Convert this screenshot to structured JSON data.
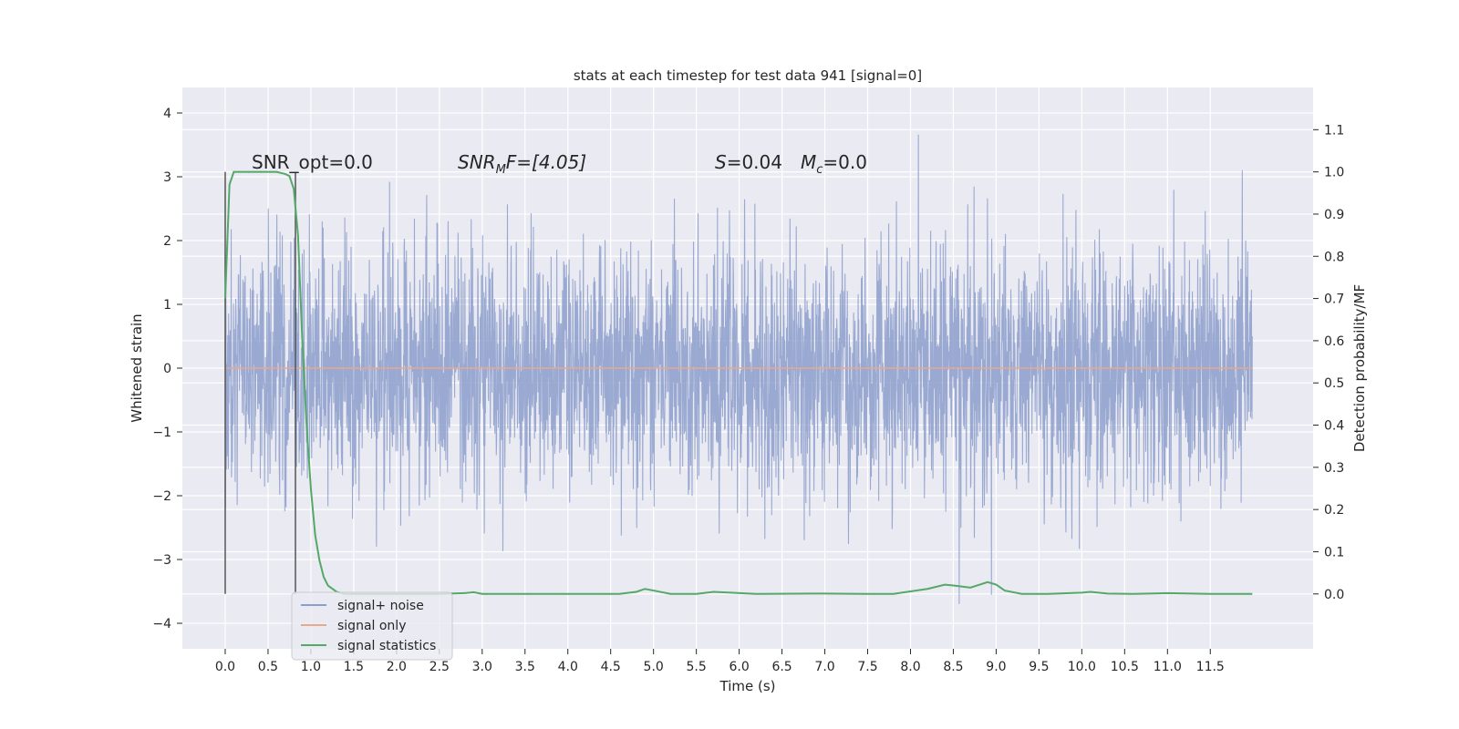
{
  "chart_data": {
    "type": "line",
    "title": "stats at each timestep for test data 941 [signal=0]",
    "xlabel": "Time (s)",
    "ylabel": "Whitened strain",
    "y2label": "Detection probability/MF",
    "xlim": [
      -0.5,
      12.7
    ],
    "ylim": [
      -4.4,
      4.4
    ],
    "y2lim": [
      -0.13,
      1.2
    ],
    "x_ticks": [
      0.0,
      0.5,
      1.0,
      1.5,
      2.0,
      2.5,
      3.0,
      3.5,
      4.0,
      4.5,
      5.0,
      5.5,
      6.0,
      6.5,
      7.0,
      7.5,
      8.0,
      8.5,
      9.0,
      9.5,
      10.0,
      10.5,
      11.0,
      11.5
    ],
    "x_tick_labels": [
      "0.0",
      "0.5",
      "1.0",
      "1.5",
      "2.0",
      "2.5",
      "3.0",
      "3.5",
      "4.0",
      "4.5",
      "5.0",
      "5.5",
      "6.0",
      "6.5",
      "7.0",
      "7.5",
      "8.0",
      "8.5",
      "9.0",
      "9.5",
      "10.0",
      "10.5",
      "11.0",
      "11.5"
    ],
    "y_ticks": [
      4,
      3,
      2,
      1,
      0,
      -1,
      -2,
      -3,
      -4
    ],
    "y_tick_labels": [
      "4",
      "3",
      "2",
      "1",
      "0",
      "−1",
      "−2",
      "−3",
      "−4"
    ],
    "y2_ticks": [
      1.1,
      1.0,
      0.9,
      0.8,
      0.7,
      0.6,
      0.5,
      0.4,
      0.3,
      0.2,
      0.1,
      0.0
    ],
    "y2_tick_labels": [
      "1.1",
      "1.0",
      "0.9",
      "0.8",
      "0.7",
      "0.6",
      "0.5",
      "0.4",
      "0.3",
      "0.2",
      "0.1",
      "0.0"
    ],
    "grid": true,
    "legend_position": "lower-left",
    "annotations": {
      "snr_opt": "SNR_opt=0.0",
      "snr_mf_main": "SNR",
      "snr_mf_sub": "M",
      "snr_mf_rest": "F=[4.05]",
      "s_label": "S",
      "s_value": "=0.04",
      "mc_label": "M",
      "mc_sub": "c",
      "mc_value": "=0.0"
    },
    "marker_lines_x": [
      0.0,
      0.82
    ],
    "series": [
      {
        "name": "signal+ noise",
        "color": "#8c9ecb",
        "axis": "left",
        "x_range": [
          0.0,
          11.99
        ],
        "y_range": [
          -4.1,
          4.0
        ],
        "note_points": []
      },
      {
        "name": "signal only",
        "color": "#e8a88c",
        "axis": "left",
        "x": [
          0.0,
          11.99
        ],
        "y": [
          0.0,
          0.0
        ]
      },
      {
        "name": "signal statistics",
        "color": "#55a868",
        "axis": "right",
        "x": [
          0.0,
          0.05,
          0.1,
          0.15,
          0.2,
          0.3,
          0.4,
          0.5,
          0.6,
          0.7,
          0.75,
          0.8,
          0.85,
          0.9,
          0.95,
          1.0,
          1.05,
          1.1,
          1.15,
          1.2,
          1.3,
          1.4,
          1.6,
          2.0,
          2.5,
          2.8,
          2.9,
          3.0,
          3.2,
          4.0,
          4.6,
          4.8,
          4.9,
          5.0,
          5.2,
          5.5,
          5.7,
          5.9,
          6.2,
          7.0,
          7.5,
          7.8,
          8.0,
          8.2,
          8.4,
          8.5,
          8.7,
          8.9,
          9.0,
          9.1,
          9.3,
          9.6,
          10.0,
          10.1,
          10.3,
          10.6,
          11.0,
          11.5,
          11.99
        ],
        "y": [
          0.7,
          0.97,
          1.0,
          1.0,
          1.0,
          1.0,
          1.0,
          1.0,
          1.0,
          0.995,
          0.99,
          0.96,
          0.85,
          0.6,
          0.4,
          0.25,
          0.14,
          0.08,
          0.04,
          0.02,
          0.005,
          0.0,
          0.0,
          0.0,
          0.0,
          0.002,
          0.004,
          0.0,
          0.0,
          0.0,
          0.0,
          0.005,
          0.012,
          0.008,
          0.0,
          0.0,
          0.005,
          0.003,
          0.0,
          0.001,
          0.0,
          0.0,
          0.006,
          0.012,
          0.022,
          0.02,
          0.015,
          0.028,
          0.022,
          0.008,
          0.0,
          0.0,
          0.003,
          0.005,
          0.001,
          0.0,
          0.002,
          0.0,
          0.0
        ]
      }
    ]
  }
}
